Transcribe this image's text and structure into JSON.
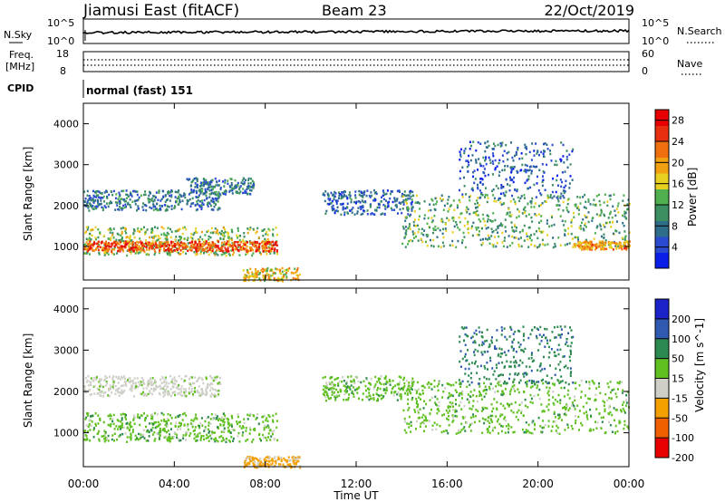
{
  "header": {
    "station": "Jiamusi East (fitACF)",
    "beam": "Beam 23",
    "date": "22/Oct/2019"
  },
  "noise_panel": {
    "left_label": "N.Sky",
    "right_label": "N.Search",
    "left_ticks": [
      "10^5",
      "10^0"
    ],
    "right_ticks": [
      "10^5",
      "10^0"
    ]
  },
  "freq_panel": {
    "left_label_1": "Freq.",
    "left_label_2": "[MHz]",
    "right_label": "Nave",
    "left_ticks": [
      "18",
      "8"
    ],
    "right_ticks": [
      "60",
      "0"
    ]
  },
  "cpid": {
    "label": "CPID",
    "text": "normal (fast) 151"
  },
  "time_axis": {
    "label": "Time UT",
    "ticks": [
      "00:00",
      "04:00",
      "08:00",
      "12:00",
      "16:00",
      "20:00",
      "00:00"
    ]
  },
  "range_axis": {
    "label": "Slant Range [km]",
    "ticks": [
      "1000",
      "2000",
      "3000",
      "4000"
    ]
  },
  "colors": {
    "power": [
      "#0a1ee8",
      "#2a4bd0",
      "#2f6e8a",
      "#3b8f60",
      "#50b050",
      "#e8d020",
      "#f0a010",
      "#f07010",
      "#e83010",
      "#e80000"
    ],
    "velocity": [
      "#e80000",
      "#f06000",
      "#f4a000",
      "#cfcfc8",
      "#60c020",
      "#2c8a50",
      "#305ab0",
      "#1a22c8"
    ]
  },
  "chart_data": [
    {
      "type": "heatmap",
      "title": "",
      "xlabel": "Time UT",
      "ylabel": "Slant Range [km]",
      "xlim_hours": [
        0,
        24
      ],
      "ylim_km": [
        180,
        4500
      ],
      "colorbar": {
        "label": "Power [dB]",
        "ticks": [
          "4",
          "8",
          "12",
          "16",
          "20",
          "24",
          "28"
        ],
        "range": [
          0,
          30
        ]
      },
      "scatter_bands": [
        {
          "t_start": 0.0,
          "t_end": 8.5,
          "range_km": [
            800,
            1500
          ],
          "value": 14
        },
        {
          "t_start": 0.0,
          "t_end": 8.5,
          "range_km": [
            900,
            1150
          ],
          "value": 24
        },
        {
          "t_start": 0.0,
          "t_end": 6.0,
          "range_km": [
            1900,
            2400
          ],
          "value": 8
        },
        {
          "t_start": 4.5,
          "t_end": 7.5,
          "range_km": [
            2300,
            2700
          ],
          "value": 8
        },
        {
          "t_start": 7.0,
          "t_end": 9.5,
          "range_km": [
            180,
            500
          ],
          "value": 18
        },
        {
          "t_start": 10.5,
          "t_end": 14.5,
          "range_km": [
            1800,
            2400
          ],
          "value": 6
        },
        {
          "t_start": 14.0,
          "t_end": 24.0,
          "range_km": [
            1000,
            2300
          ],
          "value": 12
        },
        {
          "t_start": 16.5,
          "t_end": 21.5,
          "range_km": [
            2200,
            3600
          ],
          "value": 6
        },
        {
          "t_start": 21.5,
          "t_end": 24.0,
          "range_km": [
            950,
            1150
          ],
          "value": 20
        }
      ]
    },
    {
      "type": "heatmap",
      "title": "",
      "xlabel": "Time UT",
      "ylabel": "Slant Range [km]",
      "xlim_hours": [
        0,
        24
      ],
      "ylim_km": [
        180,
        4500
      ],
      "colorbar": {
        "label": "Velocity [m s^-1]",
        "ticks": [
          "200",
          "100",
          "50",
          "15",
          "-15",
          "-50",
          "-100",
          "-200"
        ],
        "range": [
          -250,
          250
        ]
      },
      "scatter_bands": [
        {
          "t_start": 0.0,
          "t_end": 8.5,
          "range_km": [
            800,
            1500
          ],
          "value": 0
        },
        {
          "t_start": 0.0,
          "t_end": 6.0,
          "range_km": [
            1900,
            2400
          ],
          "value": -30
        },
        {
          "t_start": 7.0,
          "t_end": 9.5,
          "range_km": [
            180,
            450
          ],
          "value": -60
        },
        {
          "t_start": 10.5,
          "t_end": 14.5,
          "range_km": [
            1800,
            2400
          ],
          "value": 0
        },
        {
          "t_start": 14.0,
          "t_end": 24.0,
          "range_km": [
            1000,
            2300
          ],
          "value": 0
        },
        {
          "t_start": 16.5,
          "t_end": 21.5,
          "range_km": [
            2200,
            3600
          ],
          "value": 40
        }
      ]
    }
  ]
}
